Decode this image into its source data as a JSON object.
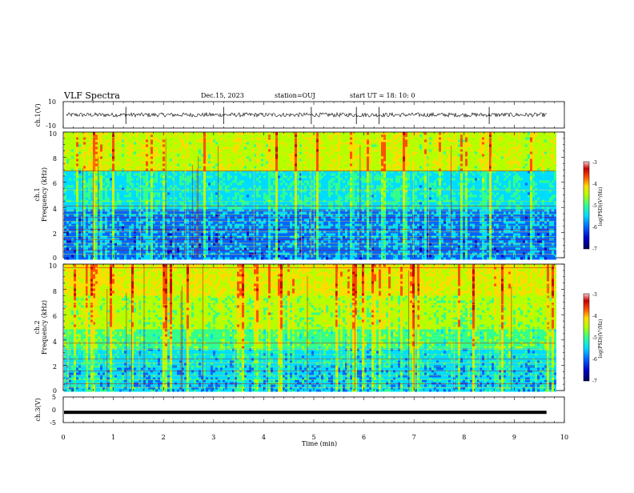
{
  "header": {
    "title": "VLF Spectra",
    "date": "Dec.15, 2023",
    "station": "station=OUJ",
    "start": "start  UT =   18: 10: 0"
  },
  "colors": {
    "spectrum_scale": [
      "#00005a",
      "#0000c8",
      "#0064ff",
      "#00dcff",
      "#32ff8c",
      "#b4ff00",
      "#ffdc00",
      "#ff5000",
      "#c80000",
      "#ffc8c8"
    ]
  },
  "chart_data": [
    {
      "type": "line",
      "panel": "ch1-waveform",
      "ylabel": "ch.1(V)",
      "ylim": [
        -10,
        10
      ],
      "yticks": [
        "10",
        "-10"
      ],
      "xlim": [
        0,
        10
      ],
      "trace_level": 0,
      "notes": "broadband waveform trace near 0 V with occasional spikes"
    },
    {
      "type": "heatmap",
      "panel": "ch1-spectrogram",
      "ylabel": "ch.1",
      "ylabel2": "Frequency (kHz)",
      "ylim": [
        0,
        10
      ],
      "yticks": [
        "10",
        "8",
        "6",
        "4",
        "2",
        "0"
      ],
      "xlim": [
        0,
        10
      ],
      "data_end_min": 9.82,
      "colorbar": {
        "label": "log(PSD)(V²/Hz)",
        "range": [
          -7,
          -3
        ],
        "ticks": [
          "-3",
          "-4",
          "-5",
          "-6",
          "-7"
        ]
      }
    },
    {
      "type": "heatmap",
      "panel": "ch2-spectrogram",
      "ylabel": "ch.2",
      "ylabel2": "Frequency (kHz)",
      "ylim": [
        0,
        10
      ],
      "yticks": [
        "10",
        "8",
        "6",
        "4",
        "2",
        "0"
      ],
      "xlim": [
        0,
        10
      ],
      "data_end_min": 9.82,
      "colorbar": {
        "label": "log(PSD)(V²/Hz)",
        "range": [
          -7,
          -3
        ],
        "ticks": [
          "-3",
          "-4",
          "-5",
          "-6",
          "-7"
        ]
      }
    },
    {
      "type": "line",
      "panel": "ch3-waveform",
      "ylabel": "ch.3(V)",
      "ylim": [
        -5,
        5
      ],
      "yticks": [
        "5",
        "0",
        "-5"
      ],
      "xlim": [
        0,
        10
      ],
      "trace_level": -1,
      "notes": "flat thick trace"
    }
  ],
  "xaxis": {
    "label": "Time (min)",
    "ticks": [
      "0",
      "1",
      "2",
      "3",
      "4",
      "5",
      "6",
      "7",
      "8",
      "9",
      "10"
    ]
  }
}
